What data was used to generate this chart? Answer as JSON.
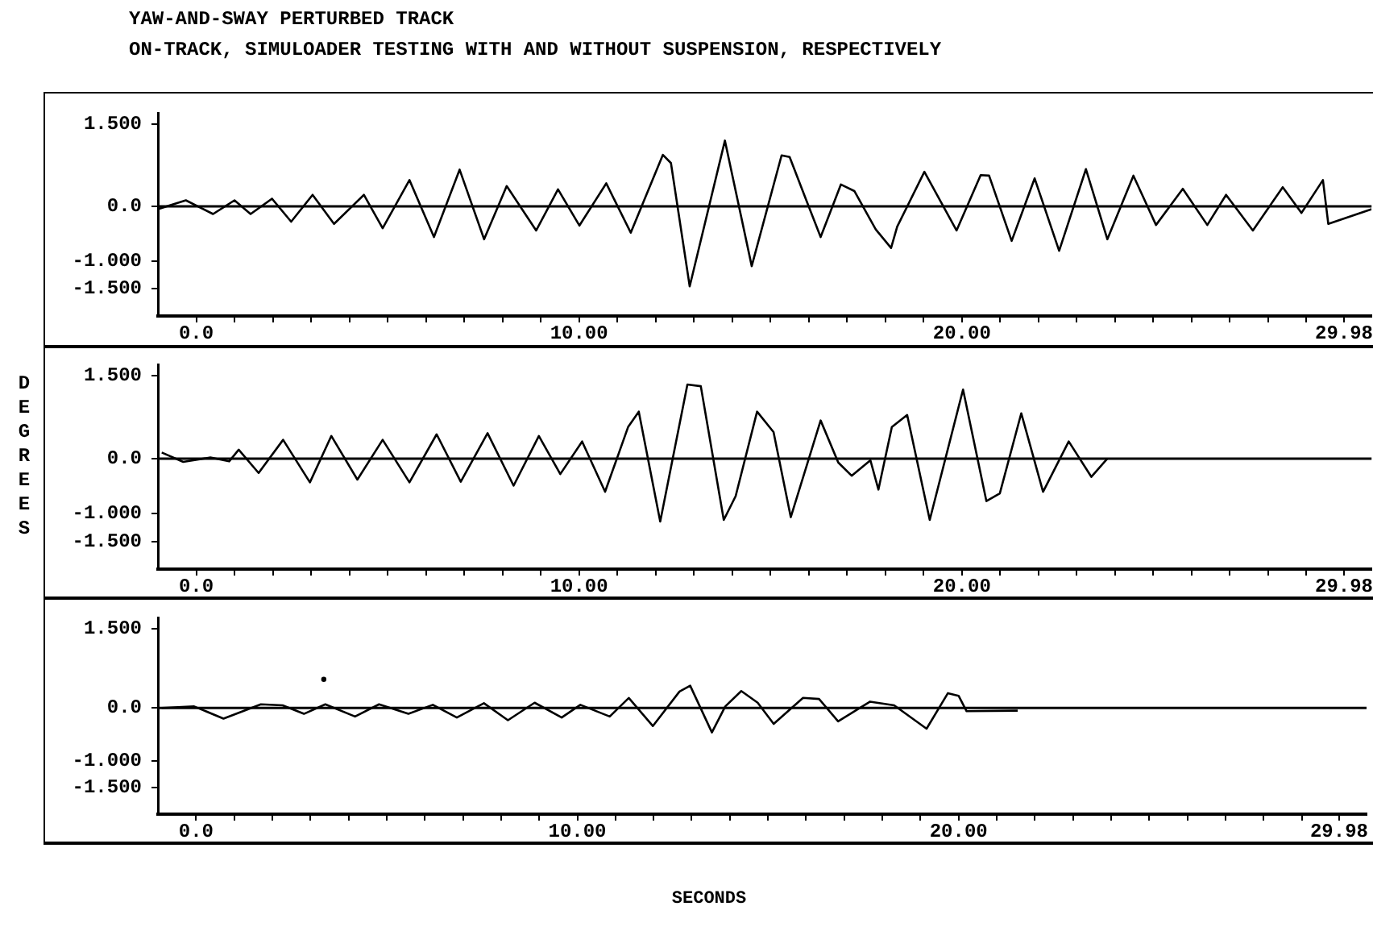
{
  "chart_data": [
    {
      "type": "line",
      "title": "YAW-AND-SWAY PERTURBED TRACK",
      "subtitle": "ON-TRACK, SIMULOADER TESTING WITH AND WITHOUT SUSPENSION, RESPECTIVELY",
      "series": [
        {
          "color": "#000000",
          "x": [
            -1.0,
            -0.27,
            0.44,
            1.0,
            1.42,
            1.98,
            2.48,
            3.04,
            3.6,
            4.38,
            4.87,
            5.57,
            6.21,
            6.88,
            7.52,
            8.11,
            8.88,
            9.45,
            10.01,
            10.71,
            11.35,
            12.19,
            12.4,
            12.89,
            13.81,
            14.51,
            15.29,
            15.5,
            15.92,
            16.31,
            16.84,
            17.19,
            17.75,
            18.15,
            18.31,
            19.02,
            19.86,
            20.49,
            20.71,
            21.3,
            21.9,
            22.54,
            23.24,
            23.8,
            24.48,
            25.07,
            25.77,
            26.41,
            26.9,
            27.6,
            28.38,
            28.87,
            29.43,
            29.57,
            30.7
          ],
          "values": [
            -0.05,
            0.11,
            -0.14,
            0.11,
            -0.14,
            0.14,
            -0.28,
            0.21,
            -0.32,
            0.21,
            -0.4,
            0.48,
            -0.56,
            0.67,
            -0.6,
            0.37,
            -0.44,
            0.31,
            -0.35,
            0.42,
            -0.48,
            0.94,
            0.79,
            -1.46,
            1.2,
            -1.09,
            0.93,
            0.9,
            0.14,
            -0.56,
            0.4,
            0.28,
            -0.42,
            -0.76,
            -0.37,
            0.63,
            -0.44,
            0.57,
            0.56,
            -0.63,
            0.51,
            -0.81,
            0.68,
            -0.6,
            0.56,
            -0.34,
            0.32,
            -0.34,
            0.21,
            -0.44,
            0.35,
            -0.12,
            0.48,
            -0.32,
            -0.05
          ]
        }
      ],
      "xlim": [
        -1,
        30.7
      ],
      "ylim": [
        -2,
        1.7
      ],
      "xticks": [
        {
          "value": 0,
          "label": "0.0"
        },
        {
          "value": 1,
          "label": null
        },
        {
          "value": 2,
          "label": null
        },
        {
          "value": 3,
          "label": null
        },
        {
          "value": 4,
          "label": null
        },
        {
          "value": 5,
          "label": null
        },
        {
          "value": 6,
          "label": null
        },
        {
          "value": 7,
          "label": null
        },
        {
          "value": 8,
          "label": null
        },
        {
          "value": 9,
          "label": null
        },
        {
          "value": 10,
          "label": "10.00"
        },
        {
          "value": 11,
          "label": null
        },
        {
          "value": 12,
          "label": null
        },
        {
          "value": 13,
          "label": null
        },
        {
          "value": 14,
          "label": null
        },
        {
          "value": 15,
          "label": null
        },
        {
          "value": 16,
          "label": null
        },
        {
          "value": 17,
          "label": null
        },
        {
          "value": 18,
          "label": null
        },
        {
          "value": 19,
          "label": null
        },
        {
          "value": 20,
          "label": "20.00"
        },
        {
          "value": 21,
          "label": null
        },
        {
          "value": 22,
          "label": null
        },
        {
          "value": 23,
          "label": null
        },
        {
          "value": 24,
          "label": null
        },
        {
          "value": 25,
          "label": null
        },
        {
          "value": 26,
          "label": null
        },
        {
          "value": 27,
          "label": null
        },
        {
          "value": 28,
          "label": null
        },
        {
          "value": 29,
          "label": null
        },
        {
          "value": 29.98,
          "label": "29.98"
        }
      ],
      "yticks": [
        {
          "value": 1.5,
          "label": "1.500"
        },
        {
          "value": 0,
          "label": "0.0"
        },
        {
          "value": -1,
          "label": "-1.000"
        },
        {
          "value": -1.5,
          "label": "-1.500"
        }
      ],
      "ref_lines": [
        {
          "axis": "y",
          "value": 0,
          "color": "#000000"
        }
      ],
      "grid": false,
      "legend": false
    },
    {
      "type": "line",
      "ylabel": "DEGREES",
      "series": [
        {
          "color": "#000000",
          "x": [
            -0.9,
            -0.34,
            0.37,
            0.86,
            1.11,
            1.63,
            2.27,
            2.97,
            3.53,
            4.21,
            4.87,
            5.57,
            6.28,
            6.91,
            7.61,
            8.29,
            8.95,
            9.51,
            10.08,
            10.68,
            11.28,
            11.56,
            12.12,
            12.83,
            13.18,
            13.78,
            14.09,
            14.65,
            15.08,
            15.53,
            16.31,
            16.77,
            17.12,
            17.61,
            17.82,
            18.17,
            18.57,
            19.16,
            20.03,
            20.64,
            20.99,
            21.55,
            22.12,
            22.79,
            23.38,
            23.8
          ],
          "values": [
            0.11,
            -0.06,
            0.02,
            -0.05,
            0.16,
            -0.26,
            0.34,
            -0.43,
            0.41,
            -0.38,
            0.34,
            -0.43,
            0.44,
            -0.42,
            0.46,
            -0.49,
            0.41,
            -0.28,
            0.31,
            -0.6,
            0.57,
            0.85,
            -1.14,
            1.34,
            1.31,
            -1.11,
            -0.68,
            0.85,
            0.48,
            -1.06,
            0.69,
            -0.07,
            -0.31,
            -0.03,
            -0.56,
            0.57,
            0.79,
            -1.11,
            1.25,
            -0.77,
            -0.63,
            0.82,
            -0.6,
            0.31,
            -0.33,
            0.0
          ]
        }
      ],
      "xlim": [
        -1,
        30.7
      ],
      "ylim": [
        -2,
        1.7
      ],
      "xticks": [
        {
          "value": 0,
          "label": "0.0"
        },
        {
          "value": 1,
          "label": null
        },
        {
          "value": 2,
          "label": null
        },
        {
          "value": 3,
          "label": null
        },
        {
          "value": 4,
          "label": null
        },
        {
          "value": 5,
          "label": null
        },
        {
          "value": 6,
          "label": null
        },
        {
          "value": 7,
          "label": null
        },
        {
          "value": 8,
          "label": null
        },
        {
          "value": 9,
          "label": null
        },
        {
          "value": 10,
          "label": "10.00"
        },
        {
          "value": 11,
          "label": null
        },
        {
          "value": 12,
          "label": null
        },
        {
          "value": 13,
          "label": null
        },
        {
          "value": 14,
          "label": null
        },
        {
          "value": 15,
          "label": null
        },
        {
          "value": 16,
          "label": null
        },
        {
          "value": 17,
          "label": null
        },
        {
          "value": 18,
          "label": null
        },
        {
          "value": 19,
          "label": null
        },
        {
          "value": 20,
          "label": "20.00"
        },
        {
          "value": 21,
          "label": null
        },
        {
          "value": 22,
          "label": null
        },
        {
          "value": 23,
          "label": null
        },
        {
          "value": 24,
          "label": null
        },
        {
          "value": 25,
          "label": null
        },
        {
          "value": 26,
          "label": null
        },
        {
          "value": 27,
          "label": null
        },
        {
          "value": 28,
          "label": null
        },
        {
          "value": 29,
          "label": null
        },
        {
          "value": 29.98,
          "label": "29.98"
        }
      ],
      "yticks": [
        {
          "value": 1.5,
          "label": "1.500"
        },
        {
          "value": 0,
          "label": "0.0"
        },
        {
          "value": -1,
          "label": "-1.000"
        },
        {
          "value": -1.5,
          "label": "-1.500"
        }
      ],
      "ref_lines": [
        {
          "axis": "y",
          "value": 0,
          "color": "#000000"
        }
      ],
      "grid": false,
      "legend": false
    },
    {
      "type": "line",
      "xlabel": "SECONDS",
      "series": [
        {
          "color": "#000000",
          "x": [
            -0.9,
            -0.05,
            0.72,
            1.7,
            2.27,
            2.83,
            3.39,
            4.17,
            4.8,
            5.57,
            6.21,
            6.84,
            7.55,
            8.18,
            8.88,
            9.59,
            10.08,
            10.85,
            11.35,
            11.98,
            12.68,
            12.96,
            13.53,
            13.88,
            14.3,
            14.73,
            15.15,
            15.92,
            16.34,
            16.84,
            17.68,
            18.31,
            19.16,
            19.72,
            20.0,
            20.21,
            21.55
          ],
          "values": [
            0,
            0.03,
            -0.2,
            0.07,
            0.05,
            -0.11,
            0.07,
            -0.16,
            0.07,
            -0.11,
            0.06,
            -0.18,
            0.09,
            -0.23,
            0.1,
            -0.18,
            0.06,
            -0.16,
            0.19,
            -0.34,
            0.31,
            0.42,
            -0.46,
            0.03,
            0.32,
            0.1,
            -0.3,
            0.19,
            0.17,
            -0.25,
            0.12,
            0.05,
            -0.39,
            0.28,
            0.23,
            -0.06,
            -0.05
          ]
        },
        {
          "type": "scatter",
          "color": "#000000",
          "x": [
            3.35
          ],
          "values": [
            0.54
          ]
        }
      ],
      "xlim": [
        -1,
        30.7
      ],
      "ylim": [
        -2,
        1.7
      ],
      "xticks": [
        {
          "value": 0,
          "label": "0.0"
        },
        {
          "value": 1,
          "label": null
        },
        {
          "value": 2,
          "label": null
        },
        {
          "value": 3,
          "label": null
        },
        {
          "value": 4,
          "label": null
        },
        {
          "value": 5,
          "label": null
        },
        {
          "value": 6,
          "label": null
        },
        {
          "value": 7,
          "label": null
        },
        {
          "value": 8,
          "label": null
        },
        {
          "value": 9,
          "label": null
        },
        {
          "value": 10,
          "label": "10.00"
        },
        {
          "value": 11,
          "label": null
        },
        {
          "value": 12,
          "label": null
        },
        {
          "value": 13,
          "label": null
        },
        {
          "value": 14,
          "label": null
        },
        {
          "value": 15,
          "label": null
        },
        {
          "value": 16,
          "label": null
        },
        {
          "value": 17,
          "label": null
        },
        {
          "value": 18,
          "label": null
        },
        {
          "value": 19,
          "label": null
        },
        {
          "value": 20,
          "label": "20.00"
        },
        {
          "value": 21,
          "label": null
        },
        {
          "value": 22,
          "label": null
        },
        {
          "value": 23,
          "label": null
        },
        {
          "value": 24,
          "label": null
        },
        {
          "value": 25,
          "label": null
        },
        {
          "value": 26,
          "label": null
        },
        {
          "value": 27,
          "label": null
        },
        {
          "value": 28,
          "label": null
        },
        {
          "value": 29,
          "label": null
        },
        {
          "value": 29.98,
          "label": "29.98"
        }
      ],
      "yticks": [
        {
          "value": 1.5,
          "label": "1.500"
        },
        {
          "value": 0,
          "label": "0.0"
        },
        {
          "value": -1,
          "label": "-1.000"
        },
        {
          "value": -1.5,
          "label": "-1.500"
        }
      ],
      "ref_lines": [
        {
          "axis": "y",
          "value": 0,
          "color": "#000000"
        }
      ],
      "grid": false,
      "legend": false
    }
  ]
}
